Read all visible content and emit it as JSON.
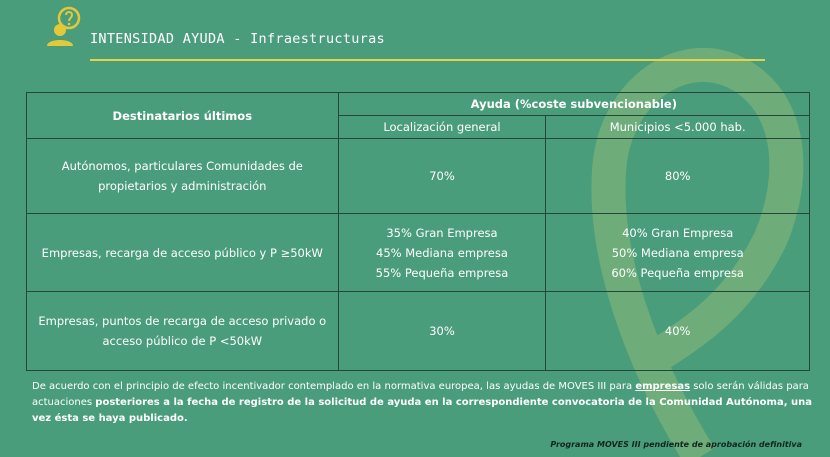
{
  "header": {
    "title": "INTENSIDAD AYUDA - Infraestructuras"
  },
  "table": {
    "headers": [
      "Destinatarios últimos",
      "Ayuda (%coste subvencionable)"
    ],
    "subheaders": [
      "Localización general",
      "Municipios <5.000 hab."
    ],
    "rows": [
      [
        [
          "Autónomos, particulares Comunidades de",
          "propietarios y administración"
        ],
        [
          "70%"
        ],
        [
          "80%"
        ]
      ],
      [
        [
          "Empresas, recarga de  acceso público  y  P ≥50kW"
        ],
        [
          "35% Gran Empresa",
          "45% Mediana empresa",
          "55% Pequeña empresa"
        ],
        [
          "40% Gran Empresa",
          "50% Mediana empresa",
          "60% Pequeña empresa"
        ]
      ],
      [
        [
          "Empresas, puntos de recarga de acceso privado o",
          "acceso público de P <50kW"
        ],
        [
          "30%"
        ],
        [
          "40%"
        ]
      ]
    ]
  },
  "footnote": [
    {
      "text": "De acuerdo con el principio de efecto incentivador contemplado en la normativa europea, las ayudas de MOVES III para ",
      "style": "normal"
    },
    {
      "text": "empresas",
      "style": "bold-underline"
    },
    {
      "text": " solo serán válidas para actuaciones ",
      "style": "normal"
    },
    {
      "text": "posteriores a la fecha de registro de la solicitud de ayuda en la correspondiente convocatoria de la Comunidad Autónoma, una vez ésta se haya publicado.",
      "style": "bold"
    }
  ],
  "note": "Programa MOVES III pendiente de aprobación definitiva"
}
